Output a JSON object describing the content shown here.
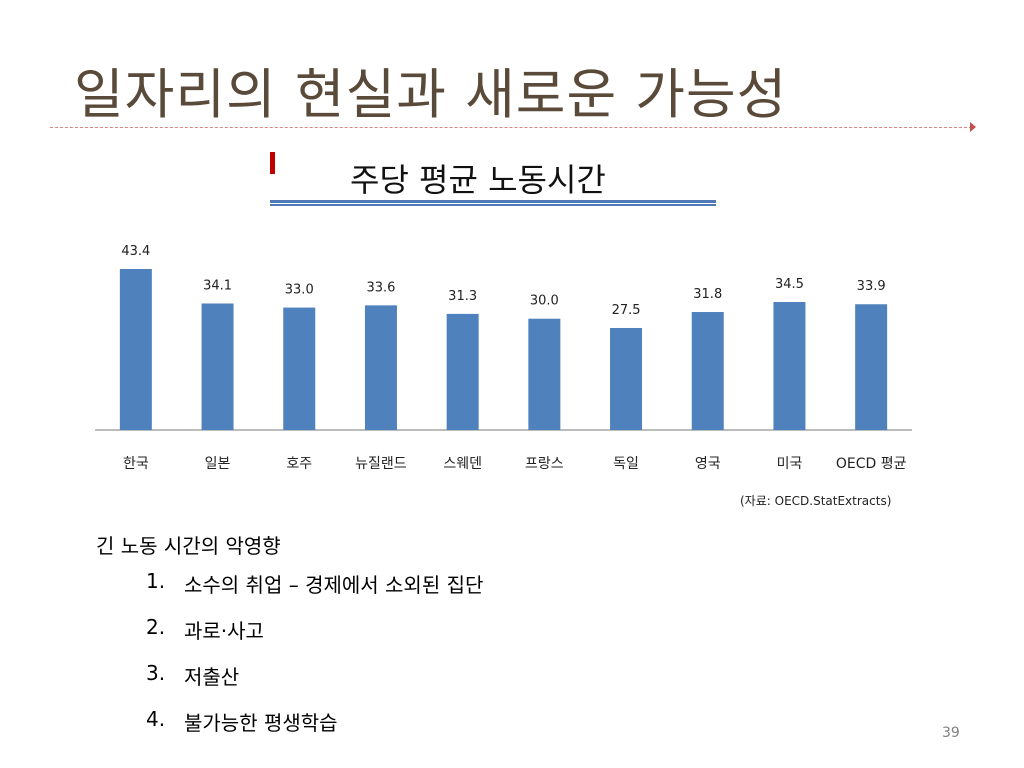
{
  "slide": {
    "title": "일자리의 현실과 새로운 가능성",
    "page_number": "39"
  },
  "chart_data": {
    "type": "bar",
    "title": "주당 평균 노동시간",
    "categories": [
      "한국",
      "일본",
      "호주",
      "뉴질랜드",
      "스웨덴",
      "프랑스",
      "독일",
      "영국",
      "미국",
      "OECD 평균"
    ],
    "values": [
      43.4,
      34.1,
      33.0,
      33.6,
      31.3,
      30.0,
      27.5,
      31.8,
      34.5,
      33.9
    ],
    "value_labels": [
      "43.4",
      "34.1",
      "33.0",
      "33.6",
      "31.3",
      "30.0",
      "27.5",
      "31.8",
      "34.5",
      "33.9"
    ],
    "ylim": [
      0,
      44
    ],
    "grid": false,
    "bar_color": "#4f81bd",
    "source": "(자료: OECD.StatExtracts)"
  },
  "bullets": {
    "heading": "긴 노동 시간의 악영향",
    "items": [
      {
        "num": "1.",
        "text": "소수의 취업 – 경제에서 소외된 집단"
      },
      {
        "num": "2.",
        "text": "과로·사고"
      },
      {
        "num": "3.",
        "text": "저출산"
      },
      {
        "num": "4.",
        "text": "불가능한 평생학습"
      }
    ]
  },
  "colors": {
    "title": "#5a4a3a",
    "accent_red": "#c00000",
    "rule_blue": "#4f79b7"
  }
}
